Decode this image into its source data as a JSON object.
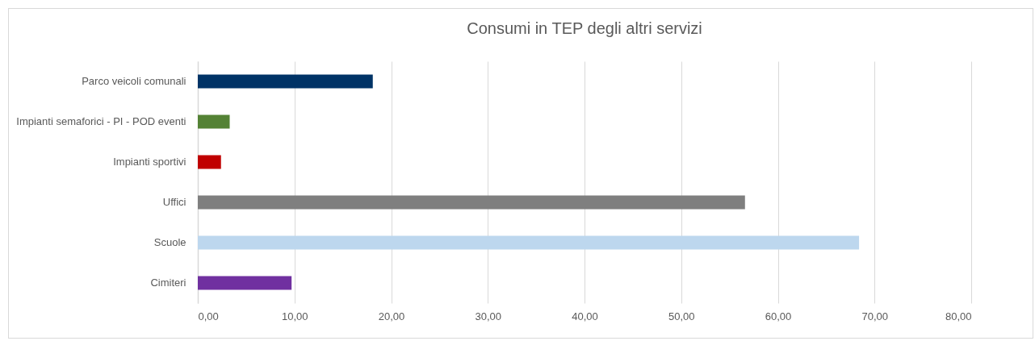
{
  "chart_data": {
    "type": "bar",
    "orientation": "horizontal",
    "title": "Consumi in TEP degli altri servizi",
    "categories": [
      "Parco veicoli comunali",
      "Impianti semaforici - PI - POD eventi",
      "Impianti sportivi",
      "Uffici",
      "Scuole",
      "Cimiteri"
    ],
    "values": [
      18.1,
      3.3,
      2.4,
      56.6,
      68.4,
      9.7
    ],
    "colors": [
      "#003366",
      "#548235",
      "#c00000",
      "#7f7f7f",
      "#bdd7ee",
      "#7030a0"
    ],
    "xlim": [
      0,
      80
    ],
    "xticks": [
      {
        "value": 0,
        "label": "0,00"
      },
      {
        "value": 10,
        "label": "10,00"
      },
      {
        "value": 20,
        "label": "20,00"
      },
      {
        "value": 30,
        "label": "30,00"
      },
      {
        "value": 40,
        "label": "40,00"
      },
      {
        "value": 50,
        "label": "50,00"
      },
      {
        "value": 60,
        "label": "60,00"
      },
      {
        "value": 70,
        "label": "70,00"
      },
      {
        "value": 80,
        "label": "80,00"
      }
    ],
    "grid": "x"
  }
}
